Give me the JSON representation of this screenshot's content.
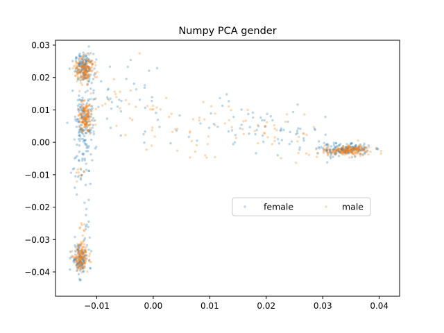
{
  "chart_data": {
    "type": "scatter",
    "title": "Numpy PCA gender",
    "xlabel": "",
    "ylabel": "",
    "xlim": [
      -0.0173,
      0.0436
    ],
    "ylim": [
      -0.0475,
      0.0315
    ],
    "xticks": [
      -0.01,
      0.0,
      0.01,
      0.02,
      0.03,
      0.04
    ],
    "xtick_labels": [
      "−0.01",
      "0.00",
      "0.01",
      "0.02",
      "0.03",
      "0.04"
    ],
    "yticks": [
      -0.04,
      -0.03,
      -0.02,
      -0.01,
      0.0,
      0.01,
      0.02,
      0.03
    ],
    "ytick_labels": [
      "−0.04",
      "−0.03",
      "−0.02",
      "−0.01",
      "0.00",
      "0.01",
      "0.02",
      "0.03"
    ],
    "grid": false,
    "legend": {
      "placement": "center-right",
      "columns": 2
    },
    "marker_alpha": 0.3,
    "series": [
      {
        "name": "female",
        "color": "#1f77b4",
        "clusters": [
          {
            "cx": -0.0122,
            "cy": 0.023,
            "sx": 0.0008,
            "sy": 0.0022,
            "n": 140
          },
          {
            "cx": -0.0122,
            "cy": 0.0085,
            "sx": 0.0008,
            "sy": 0.004,
            "n": 110
          },
          {
            "cx": -0.0125,
            "cy": -0.003,
            "sx": 0.001,
            "sy": 0.0055,
            "n": 70
          },
          {
            "cx": -0.013,
            "cy": -0.036,
            "sx": 0.0007,
            "sy": 0.0025,
            "n": 120
          },
          {
            "cx": -0.0118,
            "cy": -0.025,
            "sx": 0.0004,
            "sy": 0.004,
            "n": 12
          },
          {
            "cx": 0.034,
            "cy": -0.0022,
            "sx": 0.0022,
            "sy": 0.0009,
            "n": 170
          }
        ],
        "paths": [
          {
            "x0": -0.012,
            "y0": 0.016,
            "x1": 0.0,
            "y1": 0.01,
            "n": 45,
            "jx": 0.002,
            "jy": 0.005
          },
          {
            "x0": 0.002,
            "y0": 0.006,
            "x1": 0.03,
            "y1": 0.0,
            "n": 45,
            "jx": 0.001,
            "jy": 0.0035
          },
          {
            "x0": 0.01,
            "y0": 0.012,
            "x1": 0.03,
            "y1": 0.001,
            "n": 25,
            "jx": 0.001,
            "jy": 0.002
          }
        ]
      },
      {
        "name": "male",
        "color": "#ff7f0e",
        "clusters": [
          {
            "cx": -0.0122,
            "cy": 0.0225,
            "sx": 0.0008,
            "sy": 0.0018,
            "n": 150
          },
          {
            "cx": -0.012,
            "cy": 0.008,
            "sx": 0.0007,
            "sy": 0.0028,
            "n": 130
          },
          {
            "cx": -0.0128,
            "cy": -0.0355,
            "sx": 0.0006,
            "sy": 0.0022,
            "n": 130
          },
          {
            "cx": -0.0125,
            "cy": -0.027,
            "sx": 0.0004,
            "sy": 0.002,
            "n": 10
          },
          {
            "cx": -0.0132,
            "cy": -0.01,
            "sx": 0.0004,
            "sy": 0.0008,
            "n": 8
          },
          {
            "cx": 0.0345,
            "cy": -0.0025,
            "sx": 0.002,
            "sy": 0.0008,
            "n": 170
          }
        ],
        "paths": [
          {
            "x0": -0.011,
            "y0": 0.014,
            "x1": 0.003,
            "y1": 0.006,
            "n": 40,
            "jx": 0.002,
            "jy": 0.005
          },
          {
            "x0": 0.003,
            "y0": 0.003,
            "x1": 0.03,
            "y1": 0.0,
            "n": 45,
            "jx": 0.001,
            "jy": 0.0035
          },
          {
            "x0": 0.008,
            "y0": 0.009,
            "x1": 0.03,
            "y1": 0.001,
            "n": 20,
            "jx": 0.001,
            "jy": 0.002
          }
        ]
      }
    ]
  }
}
